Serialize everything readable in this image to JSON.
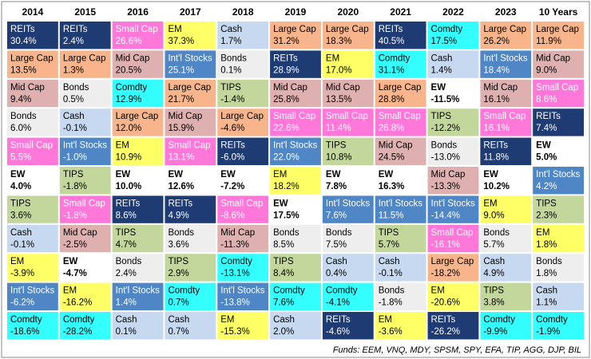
{
  "table": {
    "columns": [
      {
        "header": "2014",
        "cells": [
          {
            "label": "REITs",
            "value": "30.4%",
            "fill": "#1f3b73"
          },
          {
            "label": "Large Cap",
            "value": "13.5%",
            "fill": "#f8b48a"
          },
          {
            "label": "Mid Cap",
            "value": "9.4%",
            "fill": "#dfb0b0"
          },
          {
            "label": "Bonds",
            "value": "6.0%",
            "fill": "#eeeeee"
          },
          {
            "label": "Small Cap",
            "value": "5.5%",
            "fill": "#ff77d9"
          },
          {
            "label": "EW",
            "value": "4.0%",
            "fill": "#ffffff",
            "bold": true
          },
          {
            "label": "TIPS",
            "value": "3.6%",
            "fill": "#c3d69b"
          },
          {
            "label": "Cash",
            "value": "-0.1%",
            "fill": "#c6d9f0"
          },
          {
            "label": "EM",
            "value": "-3.9%",
            "fill": "#ffff66"
          },
          {
            "label": "Int'l Stocks",
            "value": "-6.2%",
            "fill": "#4f86c6"
          },
          {
            "label": "Comdty",
            "value": "-18.6%",
            "fill": "#33ffff"
          }
        ]
      },
      {
        "header": "2015",
        "cells": [
          {
            "label": "REITs",
            "value": "2.4%",
            "fill": "#1f3b73"
          },
          {
            "label": "Large Cap",
            "value": "1.3%",
            "fill": "#f8b48a"
          },
          {
            "label": "Bonds",
            "value": "0.5%",
            "fill": "#eeeeee"
          },
          {
            "label": "Cash",
            "value": "-0.1%",
            "fill": "#c6d9f0"
          },
          {
            "label": "Int'l Stocks",
            "value": "-1.0%",
            "fill": "#4f86c6"
          },
          {
            "label": "TIPS",
            "value": "-1.8%",
            "fill": "#c3d69b"
          },
          {
            "label": "Small Cap",
            "value": "-1.8%",
            "fill": "#ff77d9"
          },
          {
            "label": "Mid Cap",
            "value": "-2.5%",
            "fill": "#dfb0b0"
          },
          {
            "label": "EW",
            "value": "-4.7%",
            "fill": "#ffffff",
            "bold": true
          },
          {
            "label": "EM",
            "value": "-16.2%",
            "fill": "#ffff66"
          },
          {
            "label": "Comdty",
            "value": "-28.2%",
            "fill": "#33ffff"
          }
        ]
      },
      {
        "header": "2016",
        "cells": [
          {
            "label": "Small Cap",
            "value": "26.6%",
            "fill": "#ff77d9"
          },
          {
            "label": "Mid Cap",
            "value": "20.5%",
            "fill": "#dfb0b0"
          },
          {
            "label": "Comdty",
            "value": "12.9%",
            "fill": "#33ffff"
          },
          {
            "label": "Large Cap",
            "value": "12.0%",
            "fill": "#f8b48a"
          },
          {
            "label": "EM",
            "value": "10.9%",
            "fill": "#ffff66"
          },
          {
            "label": "EW",
            "value": "10.0%",
            "fill": "#ffffff",
            "bold": true
          },
          {
            "label": "REITs",
            "value": "8.6%",
            "fill": "#1f3b73"
          },
          {
            "label": "TIPS",
            "value": "4.7%",
            "fill": "#c3d69b"
          },
          {
            "label": "Bonds",
            "value": "2.4%",
            "fill": "#eeeeee"
          },
          {
            "label": "Int'l Stocks",
            "value": "1.4%",
            "fill": "#4f86c6"
          },
          {
            "label": "Cash",
            "value": "0.1%",
            "fill": "#c6d9f0"
          }
        ]
      },
      {
        "header": "2017",
        "cells": [
          {
            "label": "EM",
            "value": "37.3%",
            "fill": "#ffff66"
          },
          {
            "label": "Int'l Stocks",
            "value": "25.1%",
            "fill": "#4f86c6"
          },
          {
            "label": "Large Cap",
            "value": "21.7%",
            "fill": "#f8b48a"
          },
          {
            "label": "Mid Cap",
            "value": "15.9%",
            "fill": "#dfb0b0"
          },
          {
            "label": "Small Cap",
            "value": "13.1%",
            "fill": "#ff77d9"
          },
          {
            "label": "EW",
            "value": "12.6%",
            "fill": "#ffffff",
            "bold": true
          },
          {
            "label": "REITs",
            "value": "4.9%",
            "fill": "#1f3b73"
          },
          {
            "label": "Bonds",
            "value": "3.6%",
            "fill": "#eeeeee"
          },
          {
            "label": "TIPS",
            "value": "2.9%",
            "fill": "#c3d69b"
          },
          {
            "label": "Comdty",
            "value": "0.7%",
            "fill": "#33ffff"
          },
          {
            "label": "Cash",
            "value": "0.7%",
            "fill": "#c6d9f0"
          }
        ]
      },
      {
        "header": "2018",
        "cells": [
          {
            "label": "Cash",
            "value": "1.7%",
            "fill": "#c6d9f0"
          },
          {
            "label": "Bonds",
            "value": "0.1%",
            "fill": "#eeeeee"
          },
          {
            "label": "TIPS",
            "value": "-1.4%",
            "fill": "#c3d69b"
          },
          {
            "label": "Large Cap",
            "value": "-4.6%",
            "fill": "#f8b48a"
          },
          {
            "label": "REITs",
            "value": "-6.0%",
            "fill": "#1f3b73"
          },
          {
            "label": "EW",
            "value": "-7.2%",
            "fill": "#ffffff",
            "bold": true
          },
          {
            "label": "Small Cap",
            "value": "-8.6%",
            "fill": "#ff77d9"
          },
          {
            "label": "Mid Cap",
            "value": "-11.3%",
            "fill": "#dfb0b0"
          },
          {
            "label": "Comdty",
            "value": "-13.1%",
            "fill": "#33ffff"
          },
          {
            "label": "Int'l Stocks",
            "value": "-13.8%",
            "fill": "#4f86c6"
          },
          {
            "label": "EM",
            "value": "-15.3%",
            "fill": "#ffff66"
          }
        ]
      },
      {
        "header": "2019",
        "cells": [
          {
            "label": "Large Cap",
            "value": "31.2%",
            "fill": "#f8b48a"
          },
          {
            "label": "REITs",
            "value": "28.9%",
            "fill": "#1f3b73"
          },
          {
            "label": "Mid Cap",
            "value": "25.8%",
            "fill": "#dfb0b0"
          },
          {
            "label": "Small Cap",
            "value": "22.6%",
            "fill": "#ff77d9"
          },
          {
            "label": "Int'l Stocks",
            "value": "22.0%",
            "fill": "#4f86c6"
          },
          {
            "label": "EM",
            "value": "18.2%",
            "fill": "#ffff66"
          },
          {
            "label": "EW",
            "value": "17.5%",
            "fill": "#ffffff",
            "bold": true
          },
          {
            "label": "Bonds",
            "value": "8.5%",
            "fill": "#eeeeee"
          },
          {
            "label": "TIPS",
            "value": "8.4%",
            "fill": "#c3d69b"
          },
          {
            "label": "Comdty",
            "value": "7.6%",
            "fill": "#33ffff"
          },
          {
            "label": "Cash",
            "value": "2.0%",
            "fill": "#c6d9f0"
          }
        ]
      },
      {
        "header": "2020",
        "cells": [
          {
            "label": "Large Cap",
            "value": "18.3%",
            "fill": "#f8b48a"
          },
          {
            "label": "EM",
            "value": "17.0%",
            "fill": "#ffff66"
          },
          {
            "label": "Mid Cap",
            "value": "13.5%",
            "fill": "#dfb0b0"
          },
          {
            "label": "Small Cap",
            "value": "11.4%",
            "fill": "#ff77d9"
          },
          {
            "label": "TIPS",
            "value": "10.8%",
            "fill": "#c3d69b"
          },
          {
            "label": "EW",
            "value": "7.8%",
            "fill": "#ffffff",
            "bold": true
          },
          {
            "label": "Int'l Stocks",
            "value": "7.6%",
            "fill": "#4f86c6"
          },
          {
            "label": "Bonds",
            "value": "7.5%",
            "fill": "#eeeeee"
          },
          {
            "label": "Cash",
            "value": "0.4%",
            "fill": "#c6d9f0"
          },
          {
            "label": "Comdty",
            "value": "-4.1%",
            "fill": "#33ffff"
          },
          {
            "label": "REITs",
            "value": "-4.6%",
            "fill": "#1f3b73"
          }
        ]
      },
      {
        "header": "2021",
        "cells": [
          {
            "label": "REITs",
            "value": "40.5%",
            "fill": "#1f3b73"
          },
          {
            "label": "Comdty",
            "value": "31.1%",
            "fill": "#33ffff"
          },
          {
            "label": "Large Cap",
            "value": "28.8%",
            "fill": "#f8b48a"
          },
          {
            "label": "Small Cap",
            "value": "26.8%",
            "fill": "#ff77d9"
          },
          {
            "label": "Mid Cap",
            "value": "24.5%",
            "fill": "#dfb0b0"
          },
          {
            "label": "EW",
            "value": "16.3%",
            "fill": "#ffffff",
            "bold": true
          },
          {
            "label": "Int'l Stocks",
            "value": "11.5%",
            "fill": "#4f86c6"
          },
          {
            "label": "TIPS",
            "value": "5.7%",
            "fill": "#c3d69b"
          },
          {
            "label": "Cash",
            "value": "-0.1%",
            "fill": "#c6d9f0"
          },
          {
            "label": "Bonds",
            "value": "-1.8%",
            "fill": "#eeeeee"
          },
          {
            "label": "EM",
            "value": "-3.6%",
            "fill": "#ffff66"
          }
        ]
      },
      {
        "header": "2022",
        "cells": [
          {
            "label": "Comdty",
            "value": "17.5%",
            "fill": "#33ffff"
          },
          {
            "label": "Cash",
            "value": "1.4%",
            "fill": "#c6d9f0"
          },
          {
            "label": "EW",
            "value": "-11.5%",
            "fill": "#ffffff",
            "bold": true
          },
          {
            "label": "TIPS",
            "value": "-12.2%",
            "fill": "#c3d69b"
          },
          {
            "label": "Bonds",
            "value": "-13.0%",
            "fill": "#eeeeee"
          },
          {
            "label": "Mid Cap",
            "value": "-13.3%",
            "fill": "#dfb0b0"
          },
          {
            "label": "Int'l Stocks",
            "value": "-14.4%",
            "fill": "#4f86c6"
          },
          {
            "label": "Small Cap",
            "value": "-16.1%",
            "fill": "#ff77d9"
          },
          {
            "label": "Large Cap",
            "value": "-18.2%",
            "fill": "#f8b48a"
          },
          {
            "label": "EM",
            "value": "-20.6%",
            "fill": "#ffff66"
          },
          {
            "label": "REITs",
            "value": "-26.2%",
            "fill": "#1f3b73"
          }
        ]
      },
      {
        "header": "2023",
        "cells": [
          {
            "label": "Large Cap",
            "value": "26.2%",
            "fill": "#f8b48a"
          },
          {
            "label": "Int'l Stocks",
            "value": "18.4%",
            "fill": "#4f86c6"
          },
          {
            "label": "Mid Cap",
            "value": "16.1%",
            "fill": "#dfb0b0"
          },
          {
            "label": "Small Cap",
            "value": "16.1%",
            "fill": "#ff77d9"
          },
          {
            "label": "REITs",
            "value": "11.8%",
            "fill": "#1f3b73"
          },
          {
            "label": "EW",
            "value": "10.2%",
            "fill": "#ffffff",
            "bold": true
          },
          {
            "label": "EM",
            "value": "9.0%",
            "fill": "#ffff66"
          },
          {
            "label": "Bonds",
            "value": "5.7%",
            "fill": "#eeeeee"
          },
          {
            "label": "Cash",
            "value": "4.9%",
            "fill": "#c6d9f0"
          },
          {
            "label": "TIPS",
            "value": "3.8%",
            "fill": "#c3d69b"
          },
          {
            "label": "Comdty",
            "value": "-9.9%",
            "fill": "#33ffff"
          }
        ]
      },
      {
        "header": "10 Years",
        "cells": [
          {
            "label": "Large Cap",
            "value": "11.9%",
            "fill": "#f8b48a"
          },
          {
            "label": "Mid Cap",
            "value": "9.0%",
            "fill": "#dfb0b0"
          },
          {
            "label": "Small Cap",
            "value": "8.6%",
            "fill": "#ff77d9"
          },
          {
            "label": "REITs",
            "value": "7.4%",
            "fill": "#1f3b73"
          },
          {
            "label": "EW",
            "value": "5.0%",
            "fill": "#ffffff",
            "bold": true
          },
          {
            "label": "Int'l Stocks",
            "value": "4.2%",
            "fill": "#4f86c6"
          },
          {
            "label": "TIPS",
            "value": "2.3%",
            "fill": "#c3d69b"
          },
          {
            "label": "EM",
            "value": "1.8%",
            "fill": "#ffff66"
          },
          {
            "label": "Bonds",
            "value": "1.8%",
            "fill": "#eeeeee"
          },
          {
            "label": "Cash",
            "value": "1.1%",
            "fill": "#c6d9f0"
          },
          {
            "label": "Comdty",
            "value": "-1.9%",
            "fill": "#33ffff"
          }
        ]
      }
    ]
  },
  "footer": "Funds: EEM, VNQ, MDY, SPSM, SPY, EFA, TIP, AGG, DJP, BIL"
}
